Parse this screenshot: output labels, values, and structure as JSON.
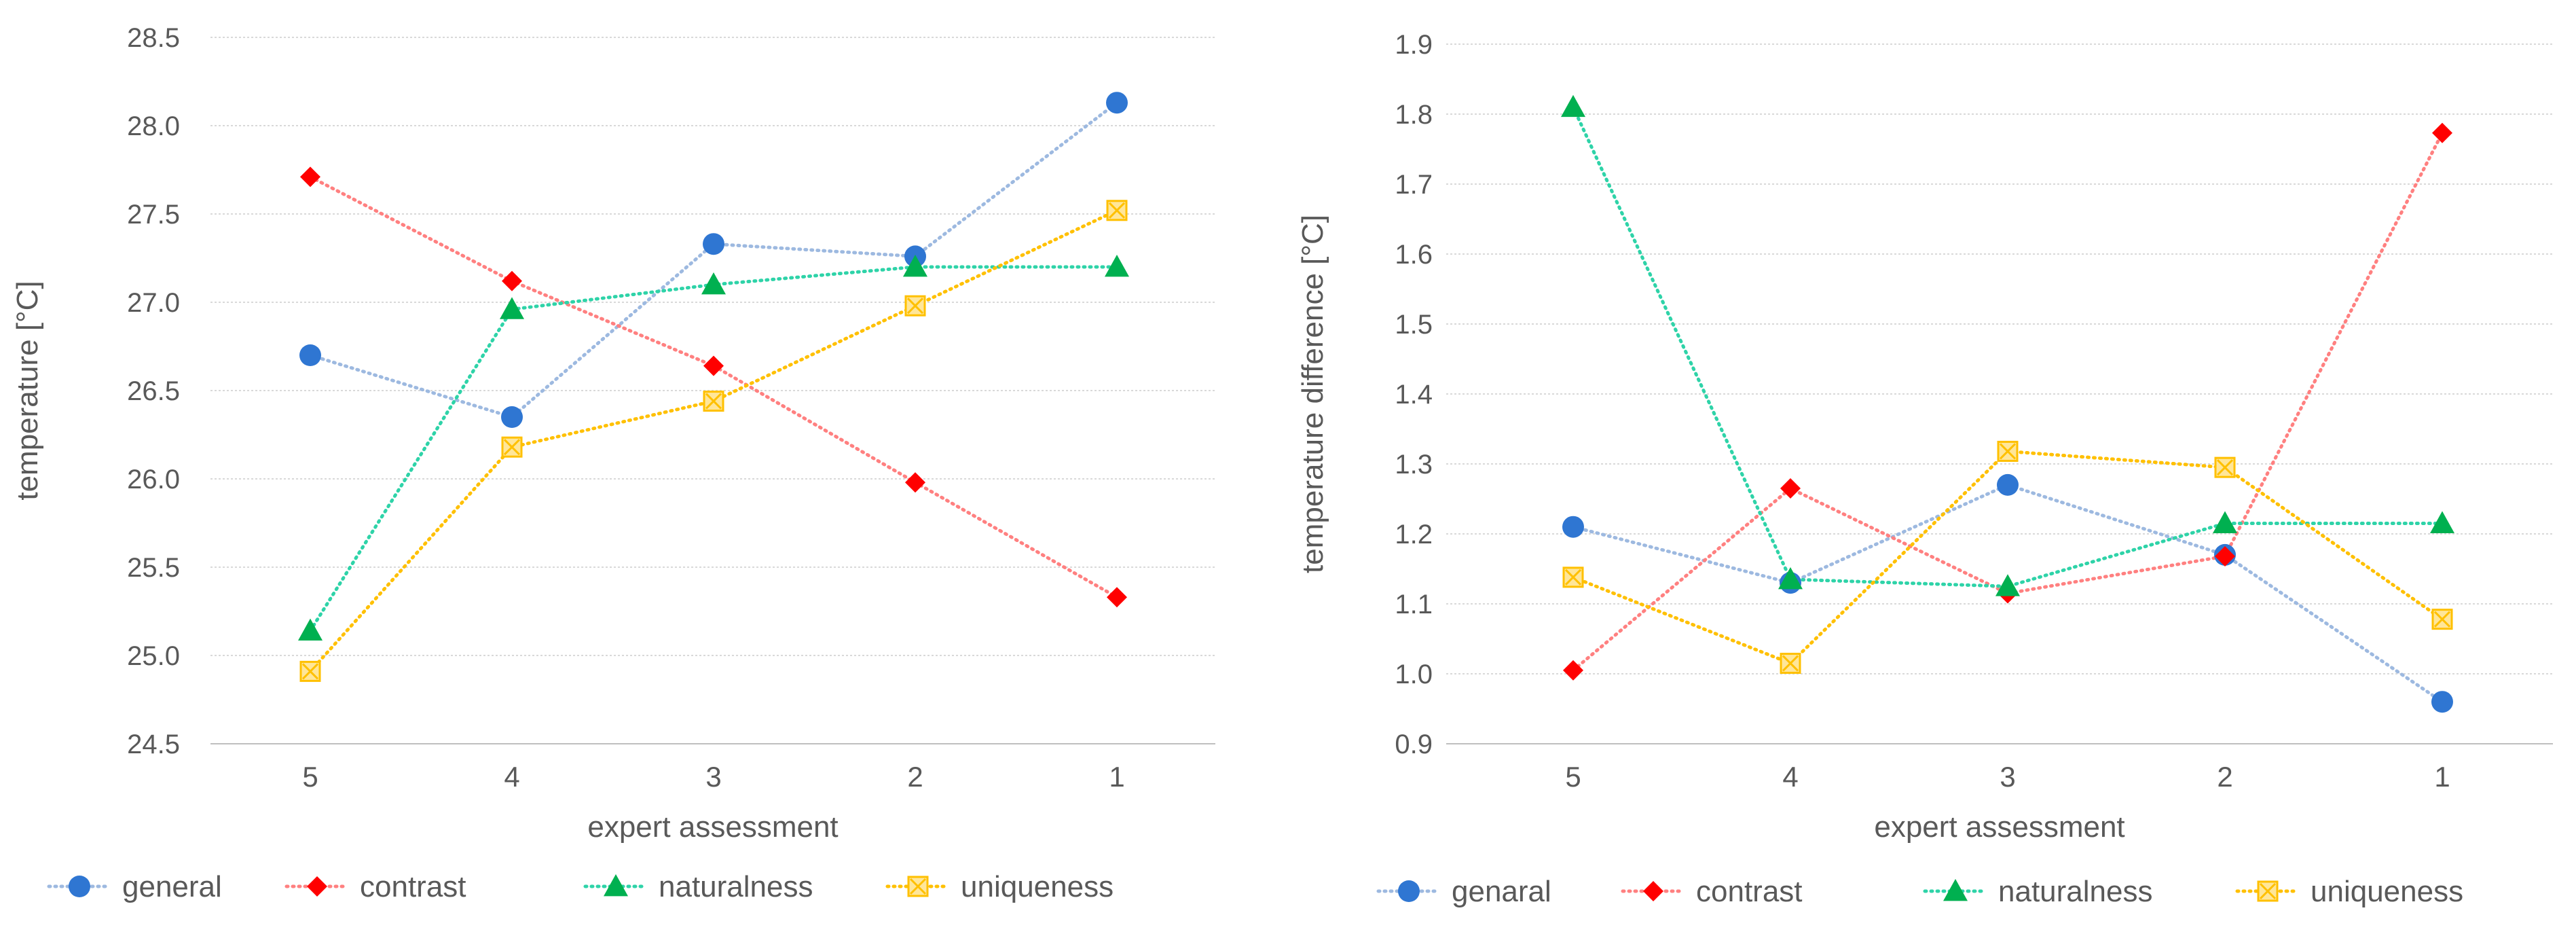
{
  "chart_data": [
    {
      "type": "line",
      "title": "",
      "xlabel": "expert assessment",
      "ylabel": "temperature [°C]",
      "categories": [
        "5",
        "4",
        "3",
        "2",
        "1"
      ],
      "ylim": [
        24.5,
        28.5
      ],
      "ytick_step": 0.5,
      "ytick_decimals": 1,
      "grid": true,
      "legend_position": "bottom",
      "series": [
        {
          "name": "general",
          "color": "#2F76D2",
          "line_color": "#9DB9E0",
          "marker": "circle",
          "values": [
            26.7,
            26.35,
            27.33,
            27.26,
            28.13
          ]
        },
        {
          "name": "contrast",
          "color": "#FF0000",
          "line_color": "#FF8080",
          "marker": "diamond",
          "values": [
            27.71,
            27.12,
            26.64,
            25.98,
            25.33
          ]
        },
        {
          "name": "naturalness",
          "color": "#00B050",
          "line_color": "#2ED3A8",
          "marker": "triangle",
          "values": [
            25.14,
            26.96,
            27.1,
            27.2,
            27.2
          ]
        },
        {
          "name": "uniqueness",
          "color": "#FFC000",
          "line_color": "#FFC000",
          "marker": "square-x",
          "values": [
            24.91,
            26.18,
            26.44,
            26.98,
            27.52
          ]
        }
      ]
    },
    {
      "type": "line",
      "title": "",
      "xlabel": "expert assessment",
      "ylabel": "temperature difference  [°C]",
      "categories": [
        "5",
        "4",
        "3",
        "2",
        "1"
      ],
      "ylim": [
        0.9,
        1.9
      ],
      "ytick_step": 0.1,
      "ytick_decimals": 1,
      "grid": true,
      "legend_position": "bottom",
      "series": [
        {
          "name": "genaral",
          "color": "#2F76D2",
          "line_color": "#9DB9E0",
          "marker": "circle",
          "values": [
            1.21,
            1.13,
            1.27,
            1.17,
            0.96
          ]
        },
        {
          "name": "contrast",
          "color": "#FF0000",
          "line_color": "#FF8080",
          "marker": "diamond",
          "values": [
            1.005,
            1.265,
            1.115,
            1.168,
            1.773
          ]
        },
        {
          "name": "naturalness",
          "color": "#00B050",
          "line_color": "#2ED3A8",
          "marker": "triangle",
          "values": [
            1.81,
            1.135,
            1.125,
            1.215,
            1.215
          ]
        },
        {
          "name": "uniqueness",
          "color": "#FFC000",
          "line_color": "#FFC000",
          "marker": "square-x",
          "values": [
            1.138,
            1.015,
            1.318,
            1.295,
            1.078
          ]
        }
      ]
    }
  ]
}
